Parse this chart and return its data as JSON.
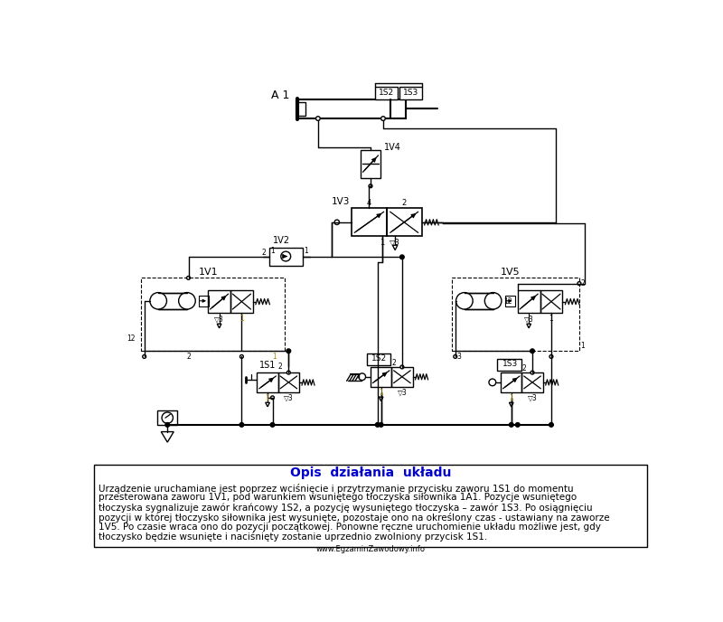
{
  "bg_color": "#ffffff",
  "line_color": "#000000",
  "blue_color": "#0000cc",
  "description_title": "Opis  działania  układu",
  "desc_lines": [
    "Urządzenie uruchamiane jest poprzez wciśnięcie i przytrzymanie przycisku zaworu 1S1 do momentu",
    "przesterowana zaworu 1V1, pod warunkiem wsuniętego tłoczyska siłownika 1A1. Pozycje wsuniętego",
    "tłoczyska sygnalizuje zawór krańcowy 1S2, a pozycję wysuniętego tłoczyska – zawór 1S3. Po osiągnięciu",
    "pozycji w której tłoczysko siłownika jest wysunięte, pozostaje ono na określony czas - ustawiany na zaworze",
    "1V5. Po czasie wraca ono do pozycji początkowej. Ponowne ręczne uruchomienie układu możliwe jest, gdy",
    "tłoczysko będzie wsunięte i naciśnięty zostanie uprzednio zwolniony przycisk 1S1."
  ],
  "website": "www.EgzaminZawodowy.info"
}
